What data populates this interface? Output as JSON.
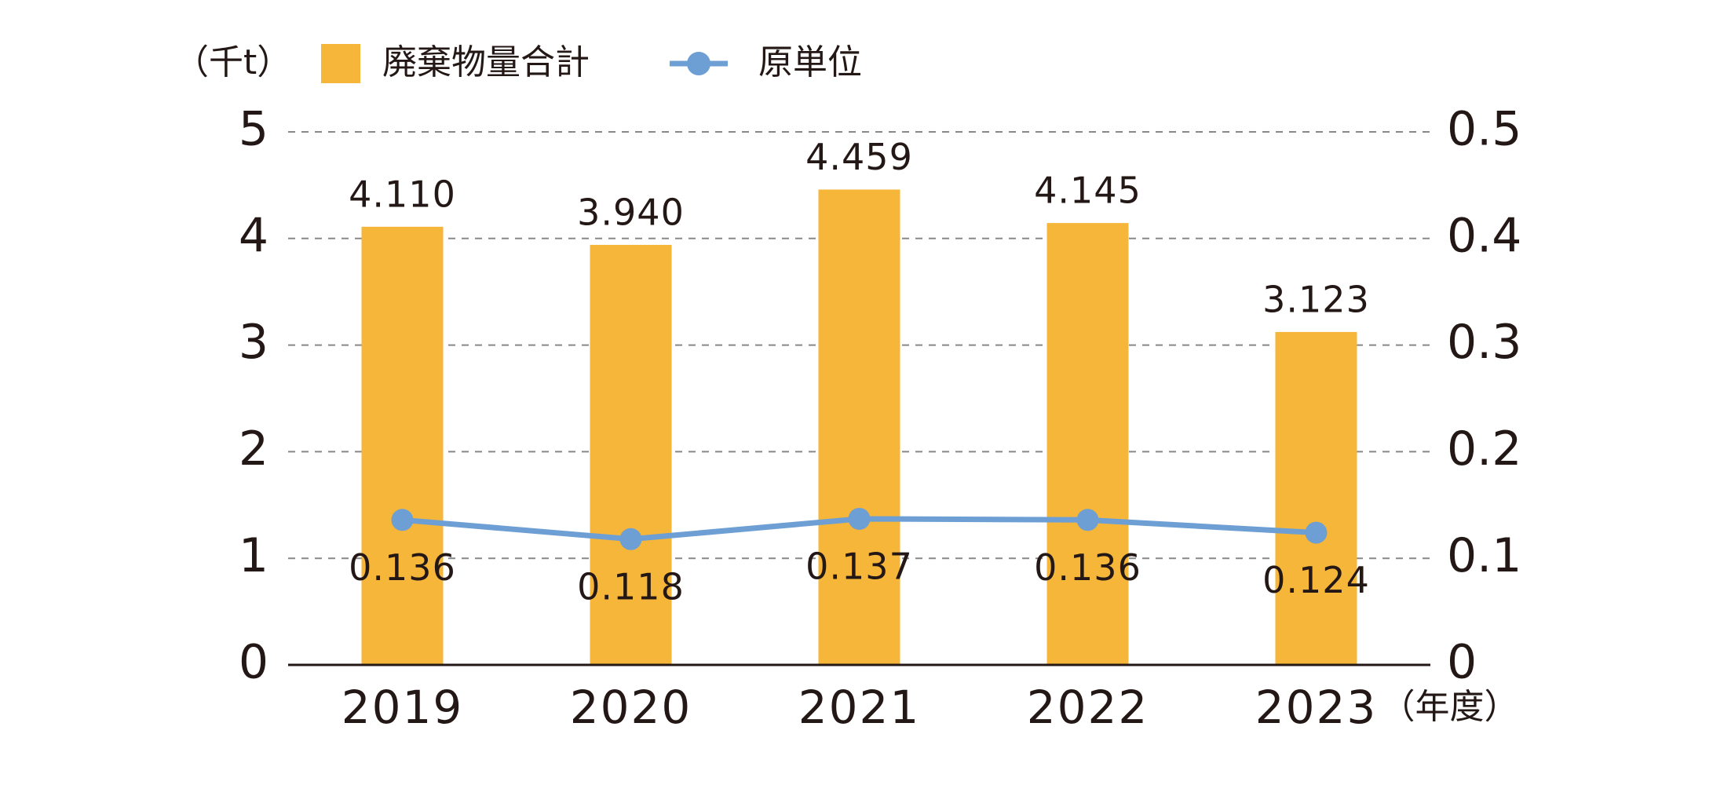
{
  "chart_data": {
    "type": "bar",
    "y_label": "（千t）",
    "x_label": "（年度）",
    "categories": [
      "2019",
      "2020",
      "2021",
      "2022",
      "2023"
    ],
    "series": [
      {
        "name": "廃棄物量合計",
        "type": "bar",
        "color": "#f6b63a",
        "values": [
          4.11,
          3.94,
          4.459,
          4.145,
          3.123
        ],
        "value_labels": [
          "4.110",
          "3.940",
          "4.459",
          "4.145",
          "3.123"
        ]
      },
      {
        "name": "原単位",
        "type": "line",
        "axis": "y2",
        "color": "#6d9fd4",
        "values": [
          0.136,
          0.118,
          0.137,
          0.136,
          0.124
        ]
      }
    ],
    "ylim": [
      0,
      5
    ],
    "yticks": [
      0,
      1,
      2,
      3,
      4,
      5
    ],
    "y2lim": [
      0,
      0.5
    ],
    "y2ticks": [
      0,
      0.1,
      0.2,
      0.3,
      0.4,
      0.5
    ],
    "grid": true,
    "legend": "top"
  }
}
